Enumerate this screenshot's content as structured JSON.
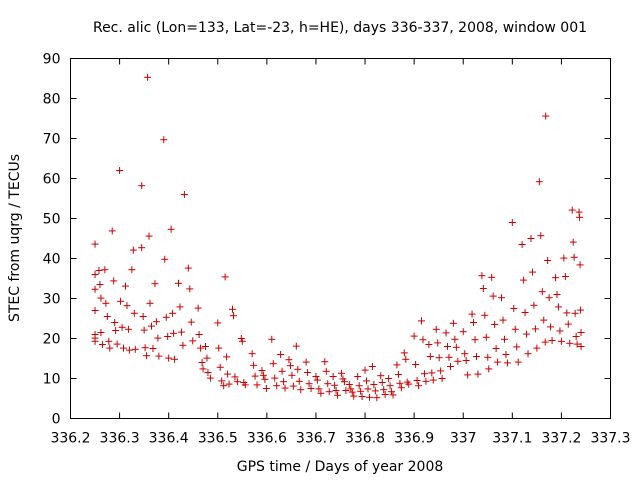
{
  "chart_data": {
    "type": "scatter",
    "title": "Rec. alic (Lon=133, Lat=-23, h=HE), days 336-337, 2008, window 001",
    "xlabel": "GPS time / Days of year 2008",
    "ylabel": "STEC from uqrg / TECUs",
    "xlim": [
      336.2,
      337.3
    ],
    "ylim": [
      0,
      90
    ],
    "xticks": [
      "336.2",
      "336.3",
      "336.4",
      "336.5",
      "336.6",
      "336.7",
      "336.8",
      "336.9",
      "337",
      "337.1",
      "337.2",
      "337.3"
    ],
    "yticks": [
      "0",
      "10",
      "20",
      "30",
      "40",
      "50",
      "60",
      "70",
      "80",
      "90"
    ],
    "grid": false,
    "marker": "+",
    "series": [
      {
        "name": "STEC",
        "color": "#cc0000",
        "points": [
          [
            336.25,
            43.6
          ],
          [
            336.25,
            36.0
          ],
          [
            336.25,
            32.3
          ],
          [
            336.25,
            27.0
          ],
          [
            336.25,
            21.0
          ],
          [
            336.25,
            20.1
          ],
          [
            336.25,
            19.3
          ],
          [
            336.258,
            37.0
          ],
          [
            336.26,
            33.5
          ],
          [
            336.262,
            30.1
          ],
          [
            336.262,
            21.5
          ],
          [
            336.265,
            18.5
          ],
          [
            336.27,
            37.2
          ],
          [
            336.272,
            28.8
          ],
          [
            336.275,
            25.5
          ],
          [
            336.278,
            19.3
          ],
          [
            336.28,
            17.6
          ],
          [
            336.285,
            46.9
          ],
          [
            336.288,
            34.4
          ],
          [
            336.29,
            24.0
          ],
          [
            336.292,
            22.0
          ],
          [
            336.295,
            18.6
          ],
          [
            336.3,
            62.0
          ],
          [
            336.302,
            29.3
          ],
          [
            336.305,
            22.8
          ],
          [
            336.308,
            17.6
          ],
          [
            336.312,
            33.1
          ],
          [
            336.315,
            28.2
          ],
          [
            336.318,
            22.3
          ],
          [
            336.32,
            17.1
          ],
          [
            336.325,
            37.2
          ],
          [
            336.328,
            42.1
          ],
          [
            336.33,
            26.3
          ],
          [
            336.332,
            17.3
          ],
          [
            336.345,
            58.2
          ],
          [
            336.345,
            42.7
          ],
          [
            336.348,
            25.5
          ],
          [
            336.35,
            22.1
          ],
          [
            336.352,
            17.7
          ],
          [
            336.355,
            15.7
          ],
          [
            336.357,
            85.3
          ],
          [
            336.36,
            45.6
          ],
          [
            336.362,
            28.8
          ],
          [
            336.365,
            23.1
          ],
          [
            336.368,
            17.5
          ],
          [
            336.372,
            33.7
          ],
          [
            336.375,
            24.2
          ],
          [
            336.378,
            20.1
          ],
          [
            336.38,
            15.6
          ],
          [
            336.39,
            69.7
          ],
          [
            336.392,
            39.8
          ],
          [
            336.395,
            25.3
          ],
          [
            336.398,
            20.5
          ],
          [
            336.4,
            15.1
          ],
          [
            336.405,
            47.3
          ],
          [
            336.408,
            26.3
          ],
          [
            336.41,
            21.3
          ],
          [
            336.412,
            14.8
          ],
          [
            336.42,
            33.8
          ],
          [
            336.423,
            27.9
          ],
          [
            336.426,
            21.6
          ],
          [
            336.429,
            18.3
          ],
          [
            336.432,
            56.0
          ],
          [
            336.44,
            37.6
          ],
          [
            336.443,
            32.4
          ],
          [
            336.446,
            24.1
          ],
          [
            336.449,
            19.4
          ],
          [
            336.46,
            27.6
          ],
          [
            336.462,
            21.0
          ],
          [
            336.465,
            17.6
          ],
          [
            336.468,
            14.0
          ],
          [
            336.47,
            12.4
          ],
          [
            336.475,
            18.0
          ],
          [
            336.478,
            15.1
          ],
          [
            336.48,
            11.5
          ],
          [
            336.485,
            10.1
          ],
          [
            336.5,
            23.9
          ],
          [
            336.502,
            17.6
          ],
          [
            336.505,
            12.8
          ],
          [
            336.508,
            9.4
          ],
          [
            336.512,
            8.2
          ],
          [
            336.515,
            35.4
          ],
          [
            336.518,
            15.4
          ],
          [
            336.52,
            11.1
          ],
          [
            336.523,
            8.6
          ],
          [
            336.53,
            27.3
          ],
          [
            336.532,
            25.7
          ],
          [
            336.535,
            10.4
          ],
          [
            336.54,
            9.2
          ],
          [
            336.548,
            20.0
          ],
          [
            336.55,
            19.3
          ],
          [
            336.553,
            9.0
          ],
          [
            336.556,
            8.4
          ],
          [
            336.57,
            16.2
          ],
          [
            336.573,
            13.3
          ],
          [
            336.576,
            10.6
          ],
          [
            336.58,
            8.4
          ],
          [
            336.59,
            12.0
          ],
          [
            336.593,
            10.8
          ],
          [
            336.596,
            9.8
          ],
          [
            336.599,
            7.5
          ],
          [
            336.61,
            19.8
          ],
          [
            336.613,
            13.7
          ],
          [
            336.616,
            10.1
          ],
          [
            336.62,
            8.2
          ],
          [
            336.628,
            16.0
          ],
          [
            336.631,
            11.8
          ],
          [
            336.634,
            9.2
          ],
          [
            336.637,
            7.6
          ],
          [
            336.645,
            14.7
          ],
          [
            336.648,
            13.2
          ],
          [
            336.651,
            10.8
          ],
          [
            336.654,
            8.1
          ],
          [
            336.66,
            18.1
          ],
          [
            336.663,
            12.3
          ],
          [
            336.666,
            9.3
          ],
          [
            336.669,
            7.2
          ],
          [
            336.68,
            14.1
          ],
          [
            336.683,
            11.5
          ],
          [
            336.686,
            8.7
          ],
          [
            336.69,
            7.5
          ],
          [
            336.7,
            10.5
          ],
          [
            336.703,
            9.6
          ],
          [
            336.706,
            7.4
          ],
          [
            336.71,
            6.3
          ],
          [
            336.718,
            14.2
          ],
          [
            336.721,
            11.8
          ],
          [
            336.724,
            8.7
          ],
          [
            336.727,
            6.7
          ],
          [
            336.735,
            10.5
          ],
          [
            336.738,
            8.3
          ],
          [
            336.741,
            7.0
          ],
          [
            336.744,
            5.8
          ],
          [
            336.752,
            11.3
          ],
          [
            336.755,
            9.9
          ],
          [
            336.758,
            9.2
          ],
          [
            336.761,
            7.0
          ],
          [
            336.768,
            8.5
          ],
          [
            336.771,
            7.4
          ],
          [
            336.774,
            6.6
          ],
          [
            336.777,
            5.6
          ],
          [
            336.785,
            10.5
          ],
          [
            336.788,
            8.2
          ],
          [
            336.791,
            6.8
          ],
          [
            336.794,
            5.5
          ],
          [
            336.8,
            12.1
          ],
          [
            336.803,
            9.4
          ],
          [
            336.806,
            7.4
          ],
          [
            336.809,
            5.3
          ],
          [
            336.815,
            13.0
          ],
          [
            336.818,
            8.5
          ],
          [
            336.821,
            6.9
          ],
          [
            336.824,
            5.2
          ],
          [
            336.832,
            10.7
          ],
          [
            336.835,
            9.0
          ],
          [
            336.838,
            7.2
          ],
          [
            336.841,
            6.0
          ],
          [
            336.848,
            10.0
          ],
          [
            336.851,
            8.2
          ],
          [
            336.854,
            6.7
          ],
          [
            336.857,
            5.9
          ],
          [
            336.865,
            13.4
          ],
          [
            336.868,
            11.0
          ],
          [
            336.871,
            8.8
          ],
          [
            336.874,
            7.7
          ],
          [
            336.88,
            16.4
          ],
          [
            336.883,
            14.8
          ],
          [
            336.886,
            9.1
          ],
          [
            336.889,
            8.6
          ],
          [
            336.9,
            20.6
          ],
          [
            336.903,
            13.5
          ],
          [
            336.906,
            9.5
          ],
          [
            336.909,
            8.2
          ],
          [
            336.915,
            24.4
          ],
          [
            336.918,
            19.7
          ],
          [
            336.921,
            11.2
          ],
          [
            336.924,
            9.3
          ],
          [
            336.93,
            18.5
          ],
          [
            336.933,
            15.5
          ],
          [
            336.936,
            11.4
          ],
          [
            336.939,
            9.6
          ],
          [
            336.945,
            22.3
          ],
          [
            336.948,
            18.9
          ],
          [
            336.951,
            15.2
          ],
          [
            336.954,
            11.9
          ],
          [
            336.957,
            10.0
          ],
          [
            336.965,
            21.4
          ],
          [
            336.968,
            18.0
          ],
          [
            336.971,
            15.3
          ],
          [
            336.974,
            13.0
          ],
          [
            336.98,
            23.8
          ],
          [
            336.983,
            19.8
          ],
          [
            336.986,
            17.8
          ],
          [
            336.989,
            14.3
          ],
          [
            337.0,
            21.7
          ],
          [
            337.003,
            16.2
          ],
          [
            337.006,
            14.5
          ],
          [
            337.009,
            10.9
          ],
          [
            337.018,
            26.1
          ],
          [
            337.021,
            24.0
          ],
          [
            337.024,
            19.7
          ],
          [
            337.027,
            15.5
          ],
          [
            337.03,
            11.1
          ],
          [
            337.038,
            35.7
          ],
          [
            337.041,
            32.5
          ],
          [
            337.044,
            25.8
          ],
          [
            337.047,
            20.3
          ],
          [
            337.05,
            15.3
          ],
          [
            337.052,
            12.4
          ],
          [
            337.058,
            35.3
          ],
          [
            337.061,
            30.6
          ],
          [
            337.064,
            23.5
          ],
          [
            337.067,
            17.5
          ],
          [
            337.07,
            14.1
          ],
          [
            337.078,
            30.2
          ],
          [
            337.081,
            24.6
          ],
          [
            337.084,
            19.8
          ],
          [
            337.087,
            16.0
          ],
          [
            337.09,
            13.9
          ],
          [
            337.1,
            49.0
          ],
          [
            337.103,
            27.5
          ],
          [
            337.106,
            22.3
          ],
          [
            337.109,
            17.9
          ],
          [
            337.112,
            14.1
          ],
          [
            337.12,
            43.5
          ],
          [
            337.123,
            34.6
          ],
          [
            337.126,
            26.5
          ],
          [
            337.129,
            21.1
          ],
          [
            337.132,
            16.2
          ],
          [
            337.138,
            45.0
          ],
          [
            337.141,
            36.6
          ],
          [
            337.144,
            28.3
          ],
          [
            337.147,
            22.4
          ],
          [
            337.15,
            17.6
          ],
          [
            337.155,
            59.2
          ],
          [
            337.158,
            45.7
          ],
          [
            337.161,
            31.7
          ],
          [
            337.164,
            24.6
          ],
          [
            337.167,
            19.1
          ],
          [
            337.168,
            75.6
          ],
          [
            337.172,
            39.5
          ],
          [
            337.175,
            30.2
          ],
          [
            337.178,
            22.9
          ],
          [
            337.181,
            19.5
          ],
          [
            337.188,
            35.2
          ],
          [
            337.191,
            31.0
          ],
          [
            337.194,
            27.9
          ],
          [
            337.197,
            21.9
          ],
          [
            337.2,
            19.3
          ],
          [
            337.205,
            40.1
          ],
          [
            337.208,
            35.5
          ],
          [
            337.211,
            26.4
          ],
          [
            337.214,
            23.6
          ],
          [
            337.217,
            18.8
          ],
          [
            337.222,
            52.1
          ],
          [
            337.224,
            44.1
          ],
          [
            337.226,
            40.3
          ],
          [
            337.228,
            26.3
          ],
          [
            337.23,
            20.5
          ],
          [
            337.232,
            18.6
          ],
          [
            337.236,
            51.6
          ],
          [
            337.237,
            50.3
          ],
          [
            337.238,
            38.4
          ],
          [
            337.239,
            27.1
          ],
          [
            337.24,
            21.5
          ],
          [
            337.24,
            18.0
          ]
        ]
      }
    ]
  }
}
